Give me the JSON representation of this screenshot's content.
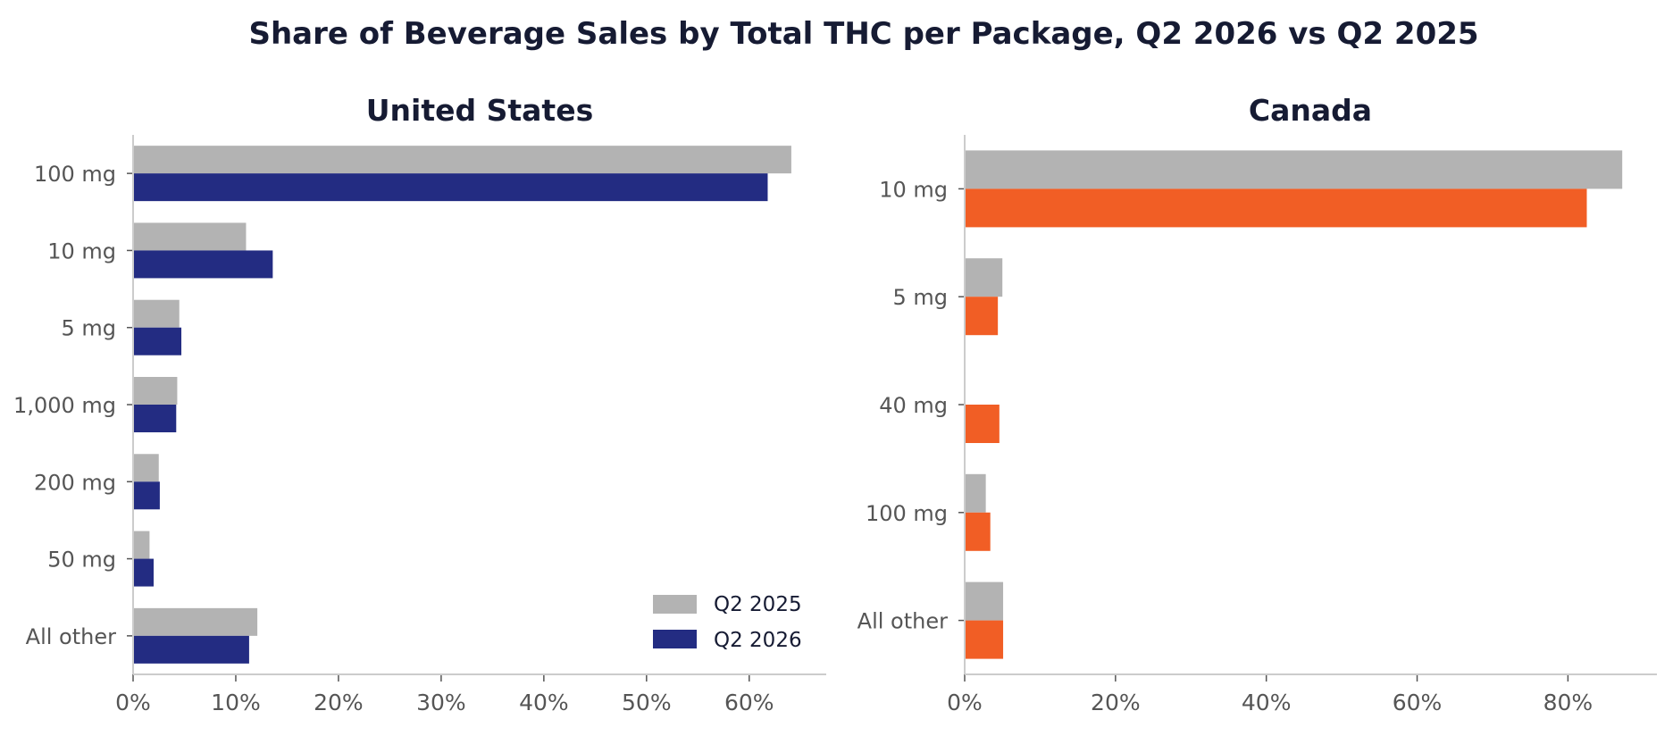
{
  "chart_data": {
    "title": "Share of Beverage Sales by Total THC per Package, Q2 2026 vs Q2 2025",
    "legend": {
      "placement": "lower-right",
      "entries": [
        "Q2 2025",
        "Q2 2026"
      ]
    },
    "panels": [
      {
        "type": "bar",
        "orientation": "horizontal",
        "title": "United States",
        "categories": [
          "100 mg",
          "10 mg",
          "5 mg",
          "1,000 mg",
          "200 mg",
          "50 mg",
          "All other"
        ],
        "series": [
          {
            "name": "Q2 2025",
            "color": "#b3b3b3",
            "values": [
              64.1,
              11.0,
              4.5,
              4.3,
              2.5,
              1.6,
              12.1
            ]
          },
          {
            "name": "Q2 2026",
            "color": "#232c82",
            "values": [
              61.8,
              13.6,
              4.7,
              4.2,
              2.6,
              2.0,
              11.3
            ]
          }
        ],
        "xlim": [
          0,
          67.5
        ],
        "xticks": [
          0,
          10,
          20,
          30,
          40,
          50,
          60
        ],
        "xtick_labels": [
          "0%",
          "10%",
          "20%",
          "30%",
          "40%",
          "50%",
          "60%"
        ],
        "grid": false
      },
      {
        "type": "bar",
        "orientation": "horizontal",
        "title": "Canada",
        "categories": [
          "10 mg",
          "5 mg",
          "40 mg",
          "100 mg",
          "All other"
        ],
        "series": [
          {
            "name": "Q2 2025",
            "color": "#b3b3b3",
            "values": [
              87.2,
              5.0,
              null,
              2.8,
              5.1
            ]
          },
          {
            "name": "Q2 2026",
            "color": "#f15e25",
            "values": [
              82.5,
              4.4,
              4.6,
              3.4,
              5.1
            ]
          }
        ],
        "xlim": [
          0,
          91.8
        ],
        "xticks": [
          0,
          20,
          40,
          60,
          80
        ],
        "xtick_labels": [
          "0%",
          "20%",
          "40%",
          "60%",
          "80%"
        ],
        "grid": false
      }
    ]
  }
}
